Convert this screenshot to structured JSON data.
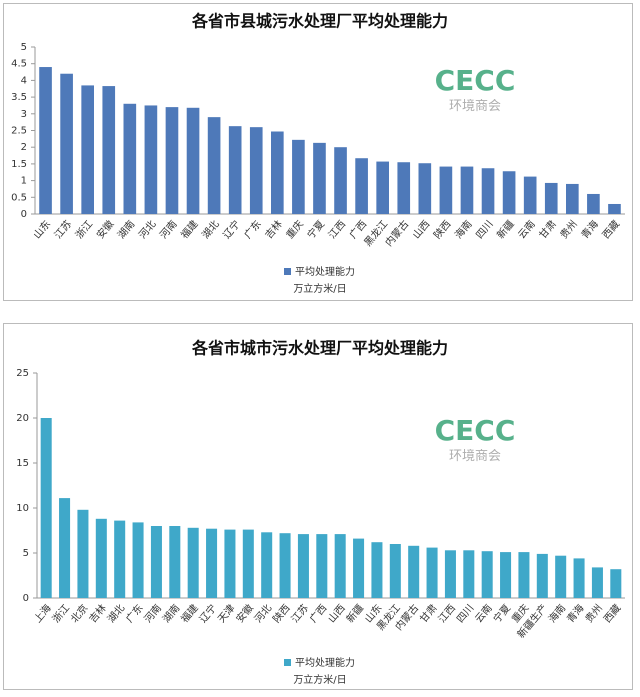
{
  "chart_data": [
    {
      "type": "bar",
      "title": "各省市县城污水处理厂平均处理能力",
      "categories": [
        "山东",
        "江苏",
        "浙江",
        "安徽",
        "湖南",
        "河北",
        "河南",
        "福建",
        "湖北",
        "辽宁",
        "广东",
        "吉林",
        "重庆",
        "宁夏",
        "江西",
        "广西",
        "黑龙江",
        "内蒙古",
        "山西",
        "陕西",
        "海南",
        "四川",
        "新疆",
        "云南",
        "甘肃",
        "贵州",
        "青海",
        "西藏"
      ],
      "series": [
        {
          "name": "平均处理能力",
          "color": "#4e79b9",
          "values": [
            4.4,
            4.2,
            3.85,
            3.83,
            3.3,
            3.25,
            3.2,
            3.18,
            2.9,
            2.63,
            2.6,
            2.47,
            2.22,
            2.13,
            2.0,
            1.67,
            1.57,
            1.55,
            1.52,
            1.42,
            1.42,
            1.37,
            1.28,
            1.12,
            0.93,
            0.9,
            0.6,
            0.3
          ]
        }
      ],
      "unit": "万立方米/日",
      "ylim": [
        0,
        5
      ],
      "yticks": [
        0,
        0.5,
        1,
        1.5,
        2,
        2.5,
        3,
        3.5,
        4,
        4.5,
        5
      ],
      "grid": false,
      "logo": "CECC",
      "logo_sub": "环境商会"
    },
    {
      "type": "bar",
      "title": "各省市城市污水处理厂平均处理能力",
      "categories": [
        "上海",
        "浙江",
        "北京",
        "吉林",
        "湖北",
        "广东",
        "河南",
        "湖南",
        "福建",
        "辽宁",
        "天津",
        "安徽",
        "河北",
        "陕西",
        "江苏",
        "广西",
        "山西",
        "新疆",
        "山东",
        "黑龙江",
        "内蒙古",
        "甘肃",
        "江西",
        "四川",
        "云南",
        "宁夏",
        "重庆",
        "新疆生产",
        "海南",
        "青海",
        "贵州",
        "西藏"
      ],
      "series": [
        {
          "name": "平均处理能力",
          "color": "#3fa8c9",
          "values": [
            20,
            11.1,
            9.8,
            8.8,
            8.6,
            8.4,
            8.0,
            8.0,
            7.8,
            7.7,
            7.6,
            7.6,
            7.3,
            7.2,
            7.1,
            7.1,
            7.1,
            6.6,
            6.2,
            6.0,
            5.8,
            5.6,
            5.3,
            5.3,
            5.2,
            5.1,
            5.1,
            4.9,
            4.7,
            4.4,
            3.4,
            3.2
          ]
        }
      ],
      "unit": "万立方米/日",
      "ylim": [
        0,
        25
      ],
      "yticks": [
        0,
        5,
        10,
        15,
        20,
        25
      ],
      "grid": false,
      "logo": "CECC",
      "logo_sub": "环境商会"
    }
  ]
}
